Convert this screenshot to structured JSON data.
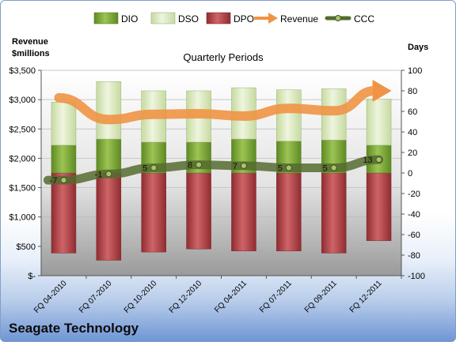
{
  "chart_data": {
    "type": "bar",
    "title": "Quarterly Periods",
    "company": "Seagate Technology",
    "left_axis_label_line1": "Revenue",
    "left_axis_label_line2": "$millions",
    "right_axis_label": "Days",
    "legend": [
      "DIO",
      "DSO",
      "DPO",
      "Revenue",
      "CCC"
    ],
    "categories": [
      "FQ 04-2010",
      "FQ 07-2010",
      "FQ 10-2010",
      "FQ 12-2010",
      "FQ 04-2011",
      "FQ 07-2011",
      "FQ 09-2011",
      "FQ 12-2011"
    ],
    "left_ticks": [
      "$-",
      "$500",
      "$1,000",
      "$1,500",
      "$2,000",
      "$2,500",
      "$3,000",
      "$3,500"
    ],
    "left_ylim": [
      0,
      3500
    ],
    "right_ticks": [
      "-100",
      "-80",
      "-60",
      "-40",
      "-20",
      "0",
      "20",
      "40",
      "60",
      "80",
      "100"
    ],
    "right_ylim": [
      -100,
      100
    ],
    "series": [
      {
        "name": "DIO",
        "axis": "right",
        "values": [
          27,
          33,
          30,
          30,
          33,
          31,
          32,
          27
        ],
        "color": "#7ea83a"
      },
      {
        "name": "DSO",
        "axis": "right",
        "values": [
          42,
          56,
          50,
          50,
          50,
          50,
          50,
          45
        ],
        "color": "#d7e7b5"
      },
      {
        "name": "DPO",
        "axis": "right",
        "values": [
          -78,
          -85,
          -77,
          -74,
          -76,
          -76,
          -78,
          -66
        ],
        "color": "#b5484b"
      },
      {
        "name": "Revenue",
        "axis": "left",
        "values": [
          3030,
          2660,
          2750,
          2760,
          2720,
          2850,
          2810,
          3150
        ],
        "color": "#ef9445"
      },
      {
        "name": "CCC",
        "axis": "right",
        "values": [
          -7,
          -1,
          5,
          8,
          7,
          5,
          5,
          13
        ],
        "labels": [
          "-7",
          "-1",
          "5",
          "8",
          "7",
          "5",
          "5",
          "13"
        ],
        "color": "#556b2f"
      }
    ]
  }
}
